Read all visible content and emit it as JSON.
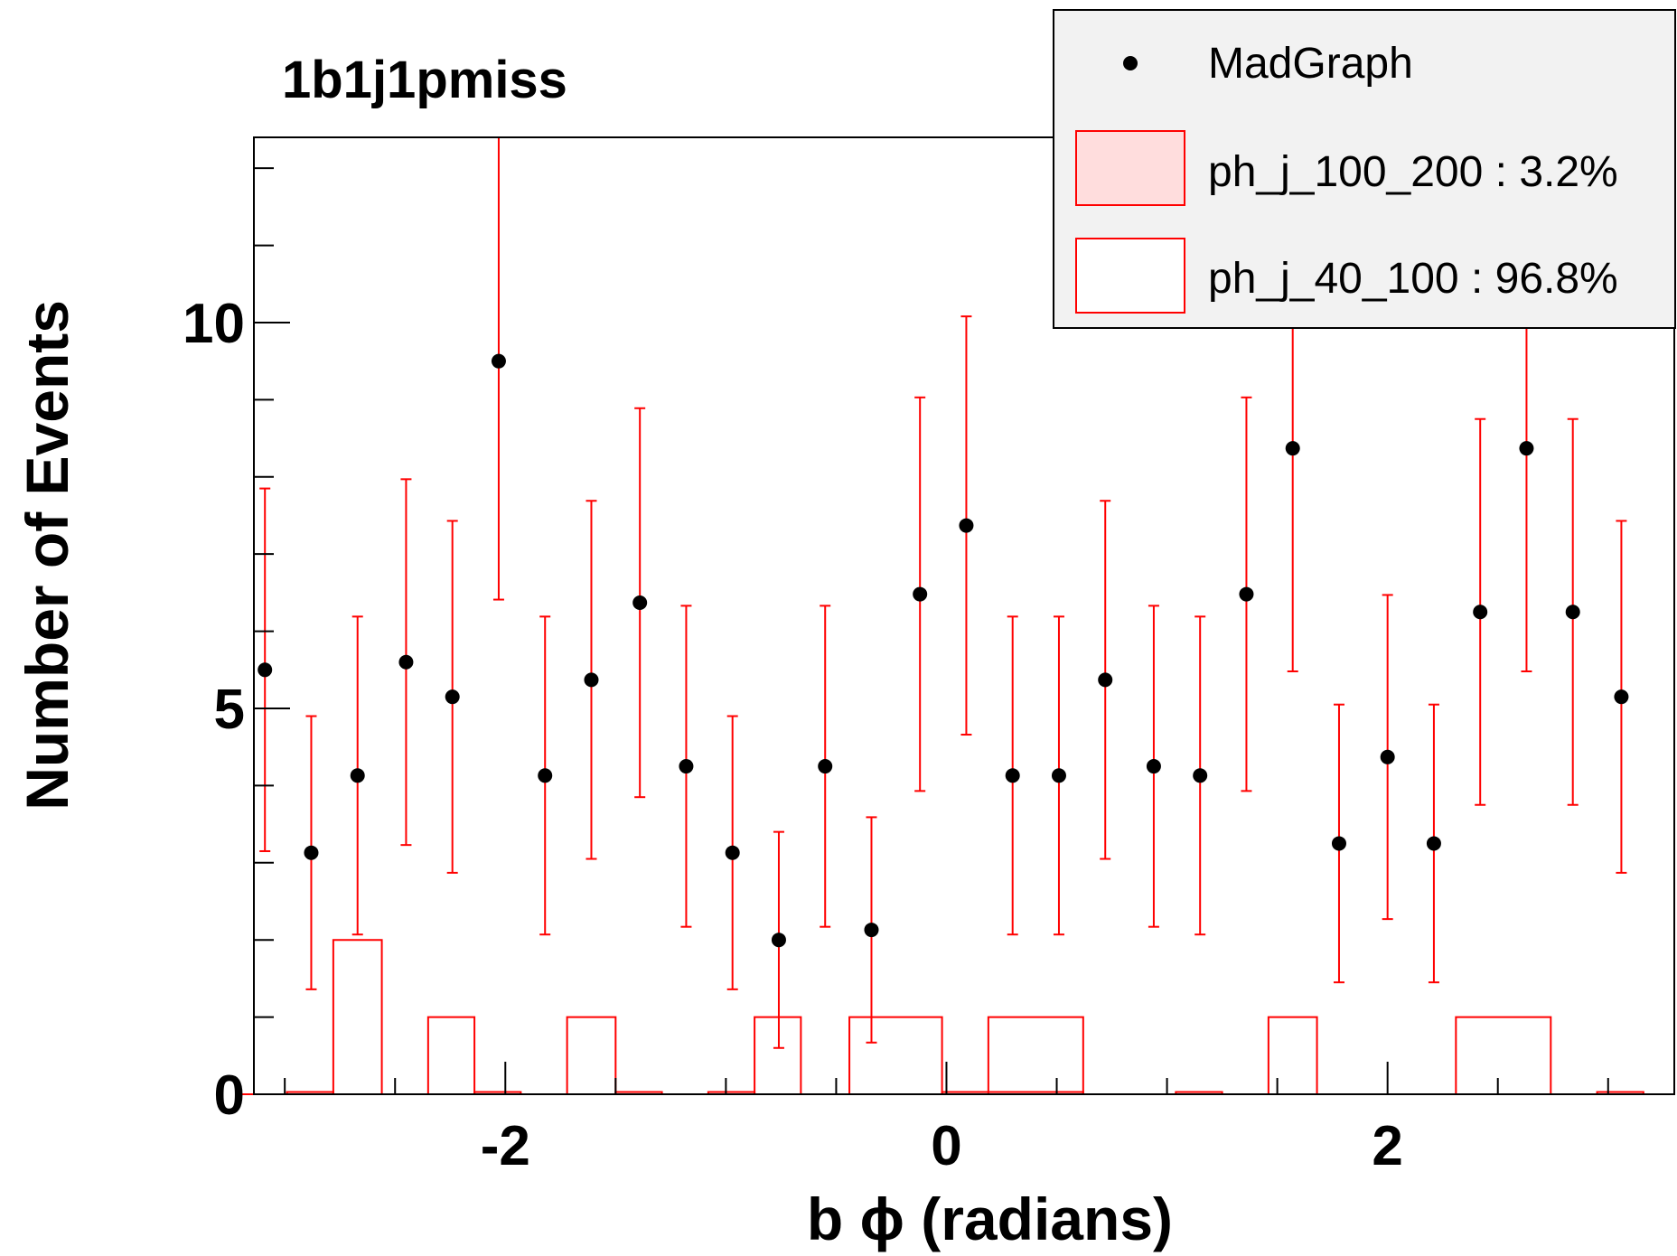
{
  "chart_data": {
    "type": "scatter",
    "title": "1b1j1pmiss",
    "xlabel": "b ϕ (radians)",
    "ylabel": "Number of Events",
    "xlim": [
      -3.14,
      3.3
    ],
    "ylim": [
      0,
      12.4
    ],
    "x_ticks": [
      -2,
      0,
      2
    ],
    "x_tick_labels": [
      "-2",
      "0",
      "2"
    ],
    "y_ticks": [
      0,
      5,
      10
    ],
    "y_tick_labels": [
      "0",
      "5",
      "10"
    ],
    "legend": {
      "placement": "top-right",
      "entries": [
        {
          "label": "MadGraph",
          "kind": "marker",
          "color": "#000000"
        },
        {
          "label": "ph_j_100_200 : 3.2%",
          "kind": "box",
          "fill": "#ffdddd",
          "stroke": "#ff0000"
        },
        {
          "label": "ph_j_40_100 : 96.8%",
          "kind": "box",
          "fill": "#ffffff",
          "stroke": "#ff0000"
        }
      ]
    },
    "colors": {
      "points": "#000000",
      "errors": "#ff0000",
      "hist": "#ff0000",
      "legend_bg": "#f2f2f2"
    },
    "series": [
      {
        "name": "MadGraph",
        "kind": "points_with_errors",
        "x": [
          -3.09,
          -2.88,
          -2.67,
          -2.45,
          -2.24,
          -2.03,
          -1.82,
          -1.61,
          -1.39,
          -1.18,
          -0.97,
          -0.76,
          -0.55,
          -0.34,
          -0.12,
          0.09,
          0.3,
          0.51,
          0.72,
          0.94,
          1.15,
          1.36,
          1.57,
          1.78,
          2.0,
          2.21,
          2.42,
          2.63,
          2.84,
          3.06
        ],
        "y": [
          5.5,
          3.13,
          4.13,
          5.6,
          5.15,
          9.5,
          4.13,
          5.37,
          6.37,
          4.25,
          3.13,
          2.0,
          4.25,
          2.13,
          6.48,
          7.37,
          4.13,
          4.13,
          5.37,
          4.25,
          4.13,
          6.48,
          8.37,
          3.25,
          4.37,
          3.25,
          6.25,
          8.37,
          6.25,
          5.15
        ],
        "err_low": [
          2.35,
          1.77,
          2.06,
          2.37,
          2.28,
          3.09,
          2.06,
          2.32,
          2.52,
          2.08,
          1.77,
          1.4,
          2.08,
          1.46,
          2.55,
          2.71,
          2.06,
          2.06,
          2.32,
          2.08,
          2.06,
          2.55,
          2.89,
          1.8,
          2.1,
          1.8,
          2.5,
          2.89,
          2.5,
          2.28
        ],
        "err_high": [
          2.35,
          1.77,
          2.06,
          2.37,
          2.28,
          3.09,
          2.06,
          2.32,
          2.52,
          2.08,
          1.77,
          1.4,
          2.08,
          1.46,
          2.55,
          2.71,
          2.06,
          2.06,
          2.32,
          2.08,
          2.06,
          2.55,
          2.89,
          1.8,
          2.1,
          1.8,
          2.5,
          2.89,
          2.5,
          2.28
        ]
      },
      {
        "name": "ph_j_40_100 : 96.8%",
        "kind": "histogram",
        "bin_edges": [
          -3.2,
          -2.99,
          -2.78,
          -2.56,
          -2.35,
          -2.14,
          -1.93,
          -1.72,
          -1.5,
          -1.29,
          -1.08,
          -0.87,
          -0.66,
          -0.44,
          -0.23,
          -0.02,
          0.19,
          0.4,
          0.62,
          0.83,
          1.04,
          1.25,
          1.46,
          1.68,
          1.89,
          2.1,
          2.31,
          2.52,
          2.74,
          2.95,
          3.16
        ],
        "counts": [
          0,
          0,
          2.0,
          0,
          1.0,
          0,
          0,
          1.0,
          0,
          0,
          0,
          1.0,
          0,
          1.0,
          1.0,
          0,
          1.0,
          1.0,
          0,
          0,
          0,
          0,
          1.0,
          0,
          0,
          0,
          1.0,
          1.0,
          0,
          0
        ]
      },
      {
        "name": "ph_j_100_200 : 3.2%",
        "kind": "histogram",
        "bin_edges": [
          -3.2,
          -2.99,
          -2.78,
          -2.56,
          -2.35,
          -2.14,
          -1.93,
          -1.72,
          -1.5,
          -1.29,
          -1.08,
          -0.87,
          -0.66,
          -0.44,
          -0.23,
          -0.02,
          0.19,
          0.4,
          0.62,
          0.83,
          1.04,
          1.25,
          1.46,
          1.68,
          1.89,
          2.1,
          2.31,
          2.52,
          2.74,
          2.95,
          3.16
        ],
        "counts": [
          0,
          0.03,
          0,
          0,
          0,
          0.03,
          0,
          0,
          0.03,
          0,
          0.03,
          0,
          0,
          0,
          0,
          0.03,
          0.03,
          0.03,
          0,
          0,
          0.03,
          0,
          0,
          0,
          0,
          0,
          0,
          0,
          0,
          0.03
        ]
      }
    ]
  }
}
